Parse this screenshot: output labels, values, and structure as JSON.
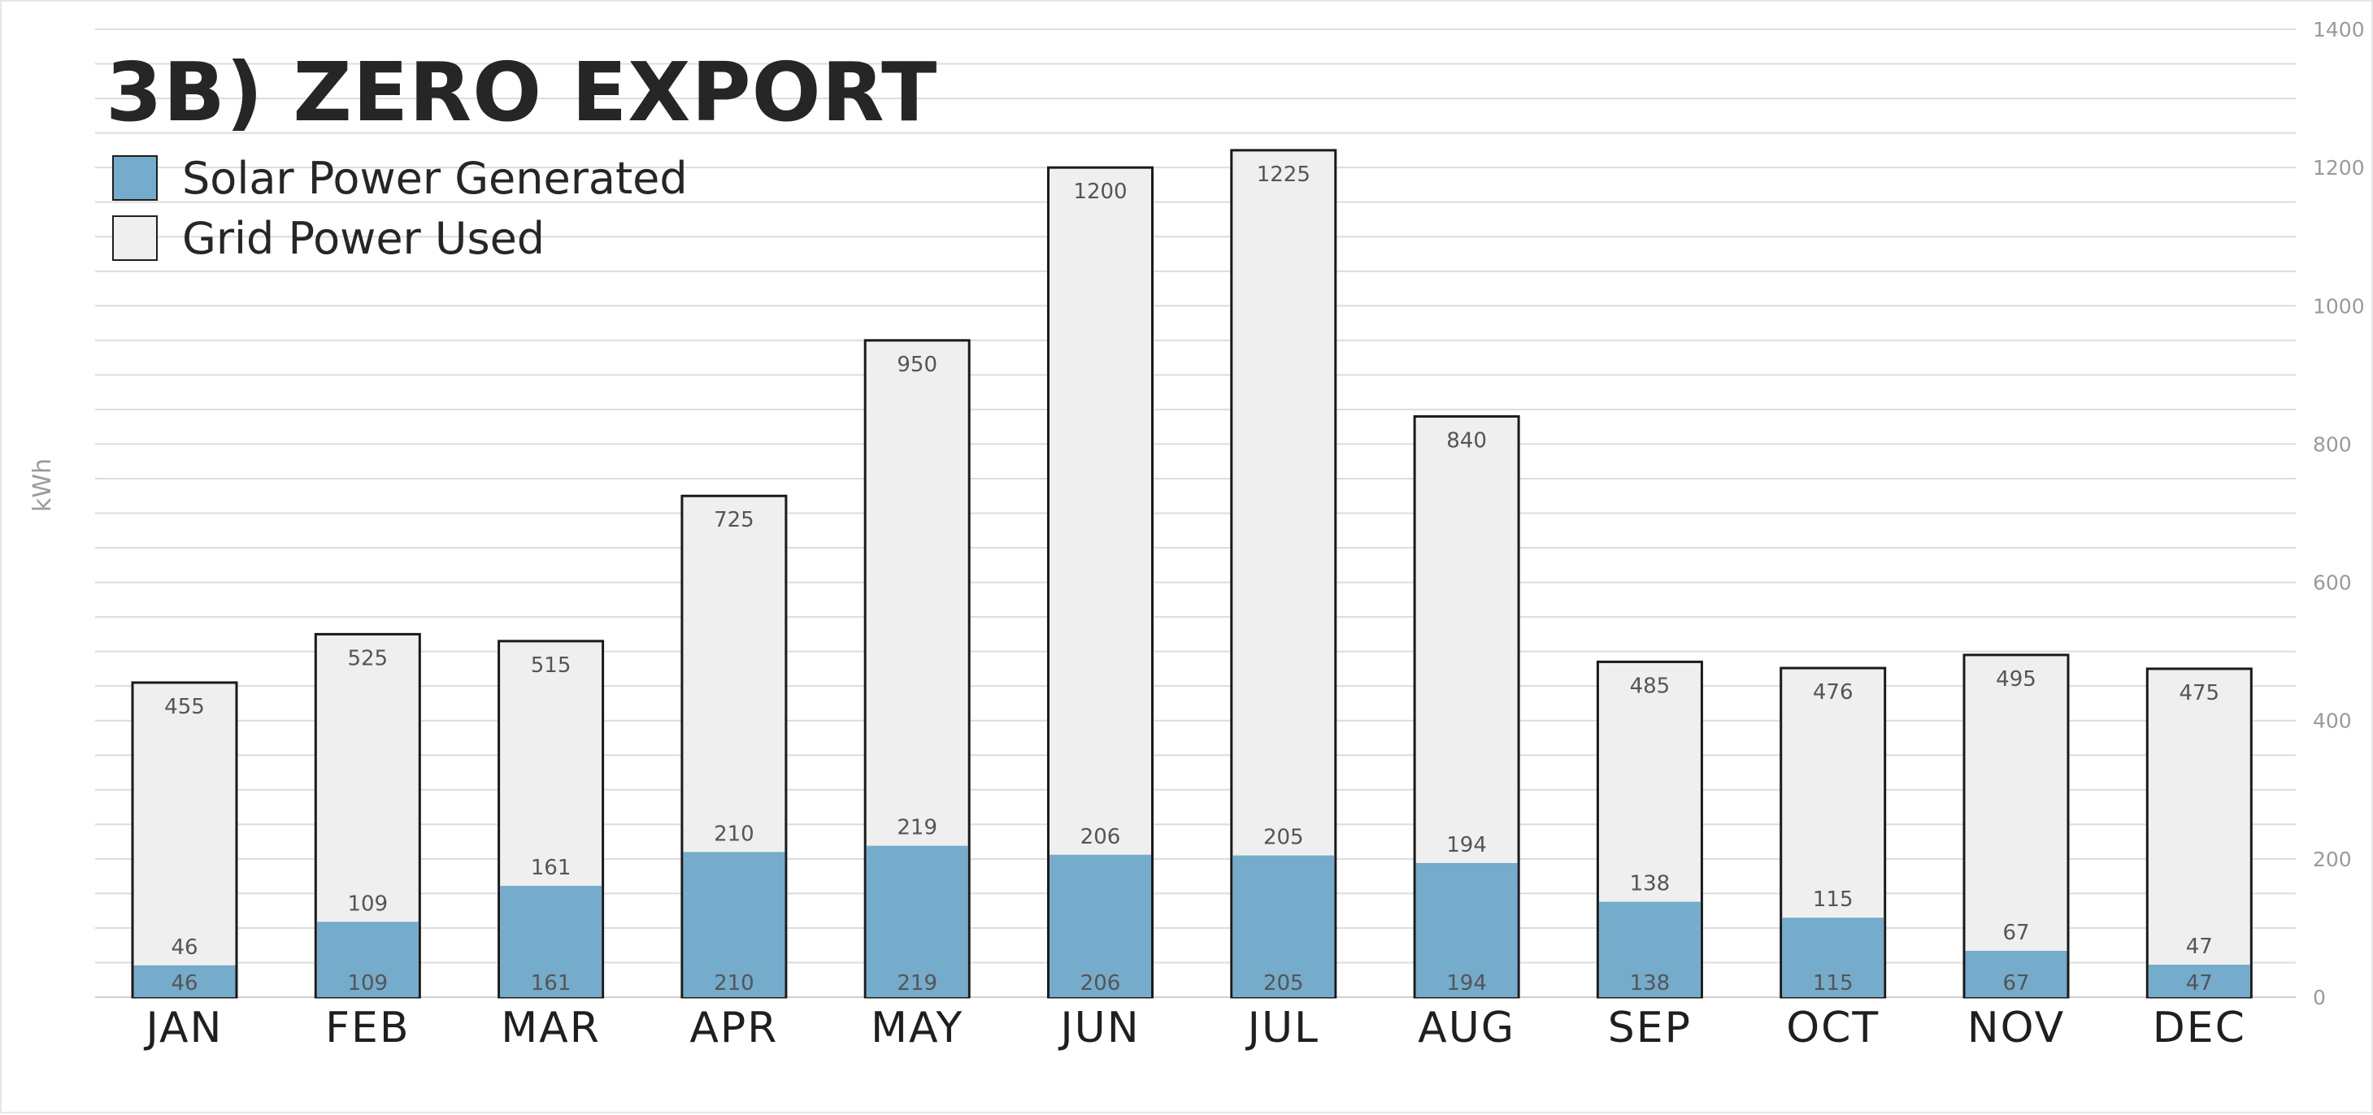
{
  "chart_data": {
    "type": "bar",
    "stacked": false,
    "title": "3B) ZERO EXPORT",
    "ylabel": "kWh",
    "xlabel": "",
    "categories": [
      "JAN",
      "FEB",
      "MAR",
      "APR",
      "MAY",
      "JUN",
      "JUL",
      "AUG",
      "SEP",
      "OCT",
      "NOV",
      "DEC"
    ],
    "series": [
      {
        "name": "Solar Power Generated",
        "color": "#75abcb",
        "values": [
          46,
          109,
          161,
          210,
          219,
          206,
          205,
          194,
          138,
          115,
          67,
          47
        ]
      },
      {
        "name": "Grid Power Used",
        "color": "#efefef",
        "values": [
          455,
          525,
          515,
          725,
          950,
          1200,
          1225,
          840,
          485,
          476,
          495,
          475
        ]
      }
    ],
    "ylim": [
      0,
      1400
    ],
    "yticks": [
      0,
      200,
      400,
      600,
      800,
      1000,
      1200,
      1400
    ],
    "grid": true,
    "gridlines_every": 50,
    "y_axis_position": "right",
    "legend_position": "top-left"
  }
}
